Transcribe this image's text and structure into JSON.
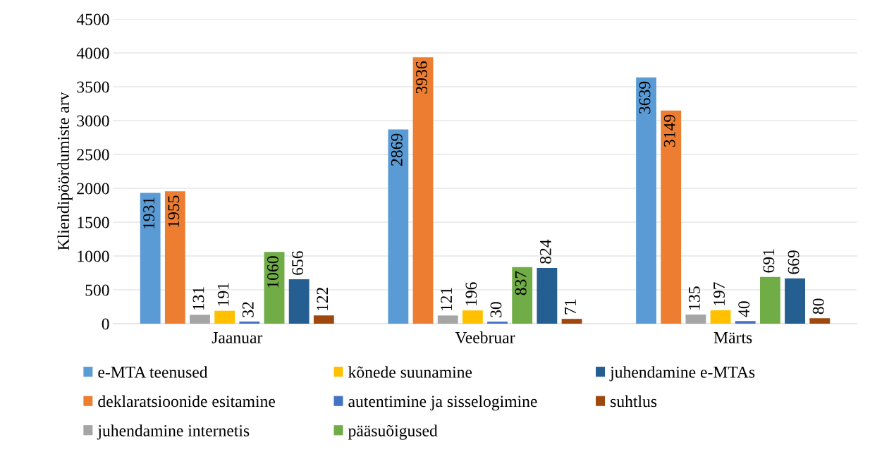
{
  "chart_data": {
    "type": "bar",
    "ylabel": "Kliendipöördumiste arv",
    "categories": [
      "Jaanuar",
      "Veebruar",
      "Märts"
    ],
    "series": [
      {
        "name": "e-MTA teenused",
        "color": "#5b9bd5",
        "values": [
          1931,
          2869,
          3639
        ]
      },
      {
        "name": "deklaratsioonide esitamine",
        "color": "#ed7d31",
        "values": [
          1955,
          3936,
          3149
        ]
      },
      {
        "name": "juhendamine internetis",
        "color": "#a5a5a5",
        "values": [
          131,
          121,
          135
        ]
      },
      {
        "name": "kõnede suunamine",
        "color": "#ffc000",
        "values": [
          191,
          196,
          197
        ]
      },
      {
        "name": "autentimine ja sisselogimine",
        "color": "#4472c4",
        "values": [
          32,
          30,
          40
        ]
      },
      {
        "name": "pääsuõigused",
        "color": "#70ad47",
        "values": [
          1060,
          837,
          691
        ]
      },
      {
        "name": "juhendamine e-MTAs",
        "color": "#255e91",
        "values": [
          656,
          824,
          669
        ]
      },
      {
        "name": "suhtlus",
        "color": "#9e480e",
        "values": [
          122,
          71,
          80
        ]
      }
    ],
    "ylim": [
      0,
      4500
    ],
    "yticks": [
      0,
      500,
      1000,
      1500,
      2000,
      2500,
      3000,
      3500,
      4000,
      4500
    ],
    "grid": "y",
    "legend": "bottom",
    "data_labels": true
  }
}
